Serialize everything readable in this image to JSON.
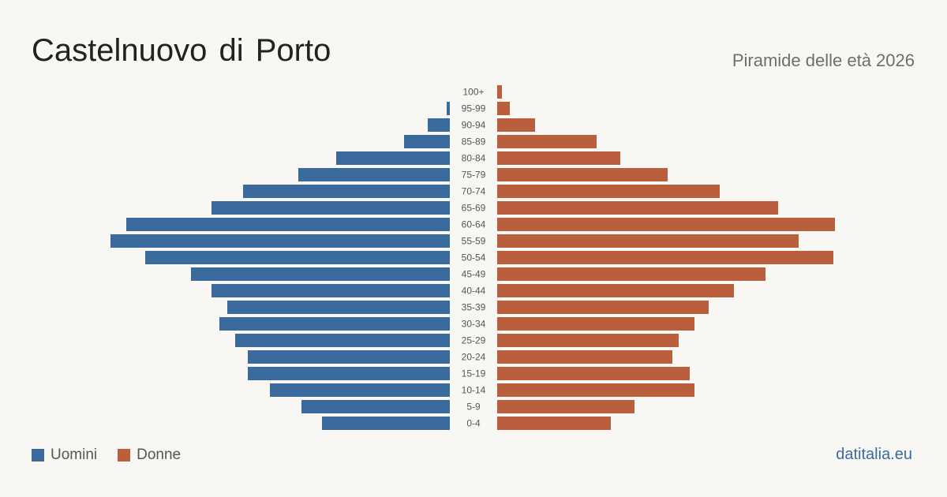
{
  "header": {
    "title": "Castelnuovo di Porto",
    "subtitle": "Piramide delle età 2026"
  },
  "legend": {
    "men_label": "Uomini",
    "women_label": "Donne"
  },
  "brand": "datitalia.eu",
  "colors": {
    "men": "#3b6a9c",
    "women": "#bb5e3e",
    "background": "#f9f7f3"
  },
  "chart_data": {
    "type": "bar",
    "orientation": "horizontal-pyramid",
    "categories": [
      "100+",
      "95-99",
      "90-94",
      "85-89",
      "80-84",
      "75-79",
      "70-74",
      "65-69",
      "60-64",
      "55-59",
      "50-54",
      "45-49",
      "40-44",
      "35-39",
      "30-34",
      "25-29",
      "20-24",
      "15-19",
      "10-14",
      "5-9",
      "0-4"
    ],
    "series": [
      {
        "name": "Uomini",
        "values": [
          0,
          2,
          14,
          29,
          72,
          96,
          131,
          151,
          205,
          215,
          193,
          164,
          151,
          141,
          146,
          136,
          128,
          128,
          114,
          94,
          81
        ]
      },
      {
        "name": "Donne",
        "values": [
          3,
          8,
          24,
          63,
          78,
          108,
          141,
          178,
          214,
          191,
          213,
          170,
          150,
          134,
          125,
          115,
          111,
          122,
          125,
          87,
          72
        ]
      }
    ],
    "legend_position": "bottom-left",
    "grid": false
  }
}
